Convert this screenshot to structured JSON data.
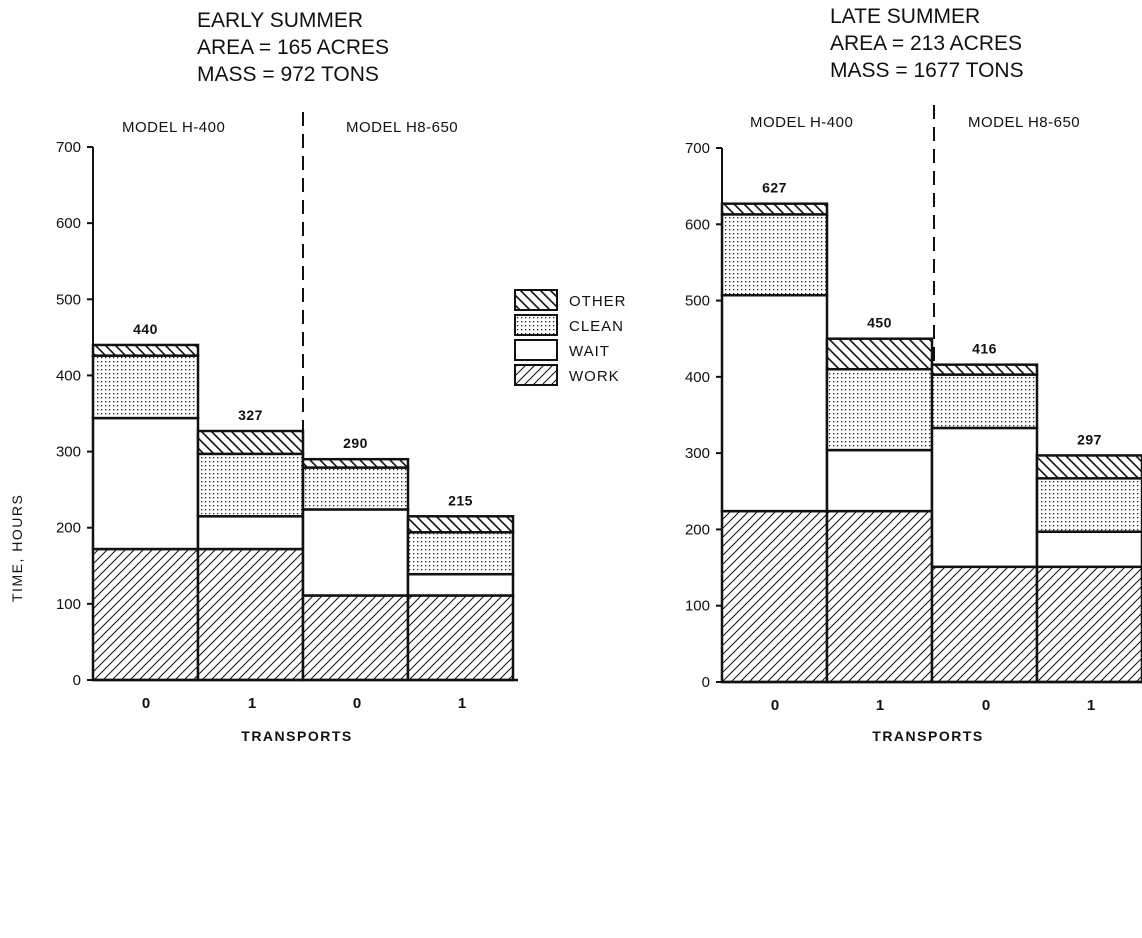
{
  "chart_data": [
    {
      "type": "bar",
      "stacked": true,
      "title_lines": [
        "EARLY SUMMER",
        "AREA = 165 ACRES",
        "MASS = 972 TONS"
      ],
      "groups": [
        "MODEL H-400",
        "MODEL H8-650"
      ],
      "categories": [
        "0",
        "1",
        "0",
        "1"
      ],
      "xlabel": "TRANSPORTS",
      "ylabel": "TIME, HOURS",
      "ylim": [
        0,
        700
      ],
      "yticks": [
        "0",
        "100",
        "200",
        "300",
        "400",
        "500",
        "600",
        "700"
      ],
      "totals": [
        "440",
        "327",
        "290",
        "215"
      ],
      "series": [
        {
          "name": "WORK",
          "values": [
            172,
            172,
            111,
            111
          ]
        },
        {
          "name": "WAIT",
          "values": [
            172,
            43,
            113,
            28
          ]
        },
        {
          "name": "CLEAN",
          "values": [
            82,
            82,
            55,
            55
          ]
        },
        {
          "name": "OTHER",
          "values": [
            14,
            30,
            11,
            21
          ]
        }
      ]
    },
    {
      "type": "bar",
      "stacked": true,
      "title_lines": [
        "LATE SUMMER",
        "AREA = 213 ACRES",
        "MASS = 1677 TONS"
      ],
      "groups": [
        "MODEL H-400",
        "MODEL H8-650"
      ],
      "categories": [
        "0",
        "1",
        "0",
        "1"
      ],
      "xlabel": "TRANSPORTS",
      "ylabel": "",
      "ylim": [
        0,
        700
      ],
      "yticks": [
        "0",
        "100",
        "200",
        "300",
        "400",
        "500",
        "600",
        "700"
      ],
      "totals": [
        "627",
        "450",
        "416",
        "297"
      ],
      "series": [
        {
          "name": "WORK",
          "values": [
            224,
            224,
            151,
            151
          ]
        },
        {
          "name": "WAIT",
          "values": [
            283,
            80,
            182,
            46
          ]
        },
        {
          "name": "CLEAN",
          "values": [
            106,
            106,
            70,
            70
          ]
        },
        {
          "name": "OTHER",
          "values": [
            14,
            40,
            13,
            30
          ]
        }
      ]
    }
  ],
  "legend": [
    {
      "name": "OTHER",
      "pattern": "other"
    },
    {
      "name": "CLEAN",
      "pattern": "clean"
    },
    {
      "name": "WAIT",
      "pattern": "wait"
    },
    {
      "name": "WORK",
      "pattern": "work"
    }
  ],
  "colors": {
    "ink": "#111111",
    "paper": "#ffffff"
  }
}
